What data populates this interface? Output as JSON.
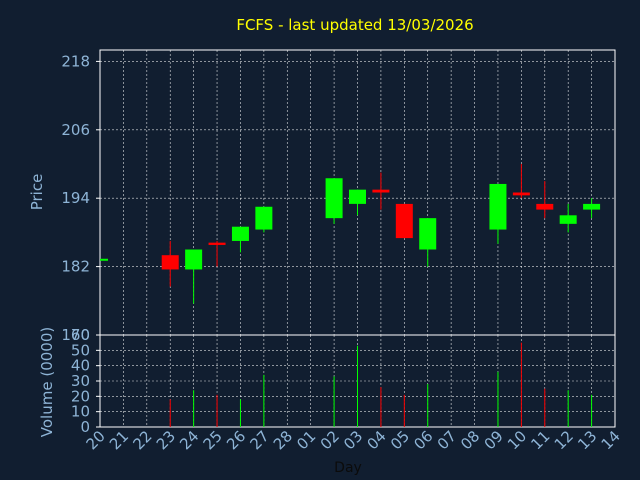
{
  "chart_data": {
    "type": "candlestick",
    "title": "FCFS - last updated 13/03/2026",
    "xlabel": "Day",
    "price_panel": {
      "ylabel": "Price",
      "ylim": [
        170,
        220
      ],
      "yticks": [
        170,
        182,
        194,
        206,
        218
      ],
      "grid": true
    },
    "volume_panel": {
      "ylabel": "Volume (0000)",
      "ylim": [
        0,
        60
      ],
      "yticks": [
        0,
        10,
        20,
        30,
        40,
        50,
        60
      ],
      "grid": true
    },
    "days": [
      "20",
      "21",
      "22",
      "23",
      "24",
      "25",
      "26",
      "27",
      "28",
      "01",
      "02",
      "03",
      "04",
      "05",
      "06",
      "07",
      "08",
      "09",
      "10",
      "11",
      "12",
      "13",
      "14"
    ],
    "candles": [
      {
        "day": "20",
        "open": 183.2,
        "high": 183.2,
        "low": 183.2,
        "close": 183.2,
        "volume": 0
      },
      {
        "day": "23",
        "open": 184.0,
        "high": 186.5,
        "low": 178.5,
        "close": 181.5,
        "volume": 18
      },
      {
        "day": "24",
        "open": 181.5,
        "high": 185.0,
        "low": 175.5,
        "close": 185.0,
        "volume": 24
      },
      {
        "day": "25",
        "open": 186.2,
        "high": 186.5,
        "low": 182.0,
        "close": 185.8,
        "volume": 21
      },
      {
        "day": "26",
        "open": 186.5,
        "high": 189.0,
        "low": 184.5,
        "close": 189.0,
        "volume": 18
      },
      {
        "day": "27",
        "open": 188.5,
        "high": 192.5,
        "low": 188.0,
        "close": 192.5,
        "volume": 34
      },
      {
        "day": "02",
        "open": 190.5,
        "high": 197.5,
        "low": 189.5,
        "close": 197.5,
        "volume": 33
      },
      {
        "day": "03",
        "open": 193.0,
        "high": 195.5,
        "low": 191.0,
        "close": 195.5,
        "volume": 53
      },
      {
        "day": "04",
        "open": 195.5,
        "high": 198.5,
        "low": 192.0,
        "close": 195.0,
        "volume": 26
      },
      {
        "day": "05",
        "open": 193.0,
        "high": 193.0,
        "low": 187.0,
        "close": 187.0,
        "volume": 21
      },
      {
        "day": "06",
        "open": 185.0,
        "high": 190.5,
        "low": 182.0,
        "close": 190.5,
        "volume": 28
      },
      {
        "day": "09",
        "open": 188.5,
        "high": 196.5,
        "low": 186.0,
        "close": 196.5,
        "volume": 36
      },
      {
        "day": "10",
        "open": 195.0,
        "high": 200.0,
        "low": 194.0,
        "close": 194.5,
        "volume": 55
      },
      {
        "day": "11",
        "open": 193.0,
        "high": 197.0,
        "low": 190.5,
        "close": 192.0,
        "volume": 25
      },
      {
        "day": "12",
        "open": 189.5,
        "high": 193.0,
        "low": 188.0,
        "close": 191.0,
        "volume": 24
      },
      {
        "day": "13",
        "open": 192.0,
        "high": 194.0,
        "low": 190.5,
        "close": 193.0,
        "volume": 21
      }
    ],
    "colors": {
      "background": "#111e30",
      "up": "#00ff00",
      "down": "#ff0000",
      "grid": "#ffffff",
      "axis_text": "#8eb4d6",
      "title": "#ffff00"
    }
  }
}
